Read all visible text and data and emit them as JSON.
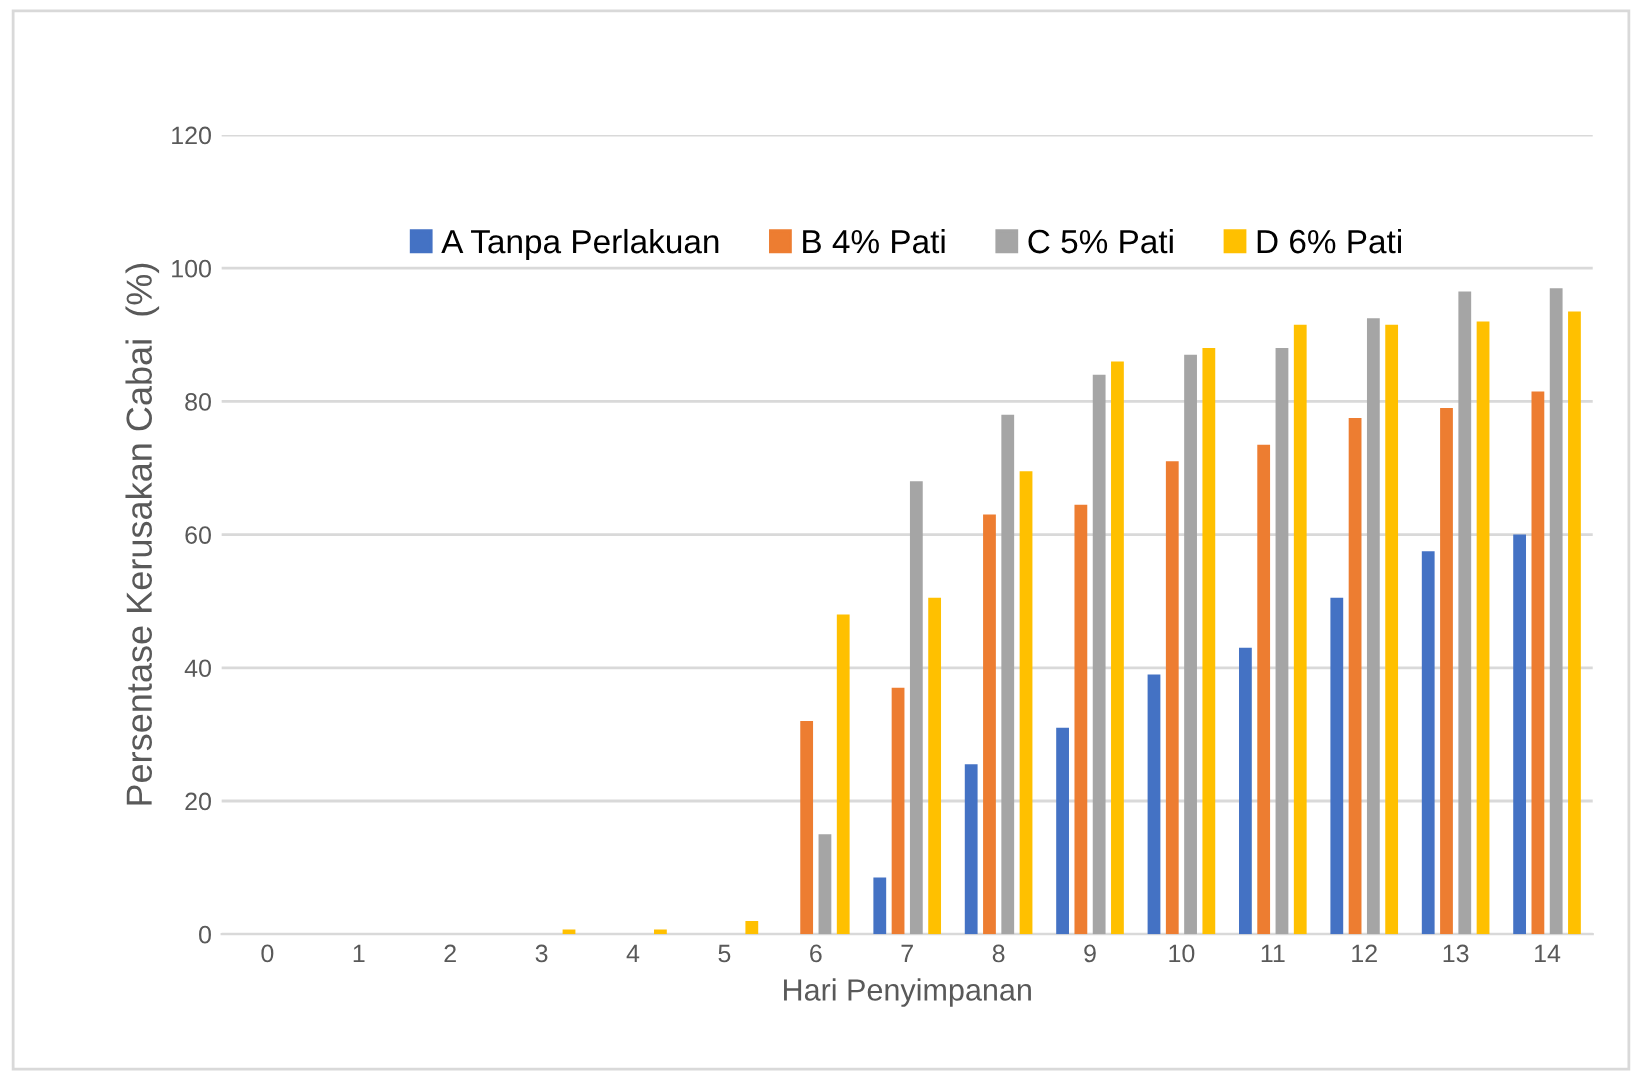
{
  "chart_data": {
    "type": "bar",
    "xlabel": "Hari Penyimpanan",
    "ylabel": "Persentase Kerusakan Cabai  (%)",
    "categories": [
      "0",
      "1",
      "2",
      "3",
      "4",
      "5",
      "6",
      "7",
      "8",
      "9",
      "10",
      "11",
      "12",
      "13",
      "14"
    ],
    "series": [
      {
        "name": "A Tanpa Perlakuan",
        "color": "#4472c4",
        "values": [
          0,
          0,
          0,
          0,
          0,
          0,
          0,
          8.5,
          25.5,
          31,
          39,
          43,
          50.5,
          57.5,
          60
        ]
      },
      {
        "name": "B 4% Pati",
        "color": "#ed7d31",
        "values": [
          0,
          0,
          0,
          0,
          0,
          0,
          32,
          37,
          63,
          64.5,
          71,
          73.5,
          77.5,
          79,
          81.5
        ]
      },
      {
        "name": "C 5% Pati",
        "color": "#a5a5a5",
        "values": [
          0,
          0,
          0,
          0,
          0,
          0,
          15,
          68,
          78,
          84,
          87,
          88,
          92.5,
          96.5,
          97
        ]
      },
      {
        "name": "D 6% Pati",
        "color": "#ffc000",
        "values": [
          0,
          0,
          0,
          0.7,
          0.7,
          2,
          48,
          50.5,
          69.5,
          86,
          88,
          91.5,
          91.5,
          92,
          93.5
        ]
      }
    ],
    "ylim": [
      0,
      120
    ],
    "yticks": [
      0,
      20,
      40,
      60,
      80,
      100,
      120
    ],
    "grid": "y",
    "legend": "top"
  }
}
